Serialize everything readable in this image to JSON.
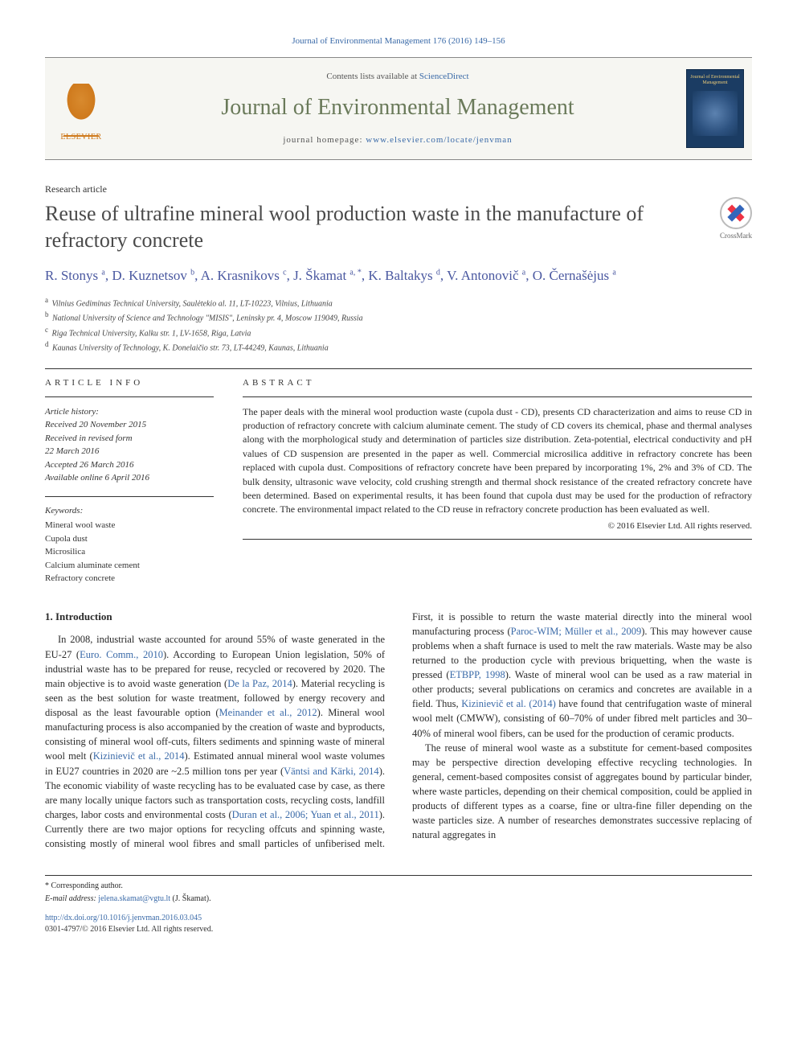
{
  "colors": {
    "link": "#3a6aa8",
    "journal_name": "#6a7a5a",
    "author": "#4a58a0",
    "elsevier_orange": "#cf7a1d",
    "cover_bg": "#1b3c63",
    "cover_accent": "#e8c978",
    "text": "#2a2a2a",
    "rule": "#333333"
  },
  "top_line": "Journal of Environmental Management 176 (2016) 149–156",
  "masthead": {
    "contents_prefix": "Contents lists available at ",
    "contents_link": "ScienceDirect",
    "journal_name": "Journal of Environmental Management",
    "homepage_prefix": "journal homepage: ",
    "homepage_link": "www.elsevier.com/locate/jenvman",
    "logo_word": "ELSEVIER",
    "cover_title": "Journal of Environmental Management"
  },
  "crossmark_label": "CrossMark",
  "article_type": "Research article",
  "title": "Reuse of ultrafine mineral wool production waste in the manufacture of refractory concrete",
  "authors_html": "R. Stonys <sup>a</sup>, D. Kuznetsov <sup>b</sup>, A. Krasnikovs <sup>c</sup>, J. Škamat <sup>a, *</sup>, K. Baltakys <sup>d</sup>, V. Antonovič <sup>a</sup>, O. Černašėjus <sup>a</sup>",
  "affiliations": [
    {
      "sup": "a",
      "text": "Vilnius Gediminas Technical University, Saulėtekio al. 11, LT-10223, Vilnius, Lithuania"
    },
    {
      "sup": "b",
      "text": "National University of Science and Technology \"MISIS\", Leninsky pr. 4, Moscow 119049, Russia"
    },
    {
      "sup": "c",
      "text": "Riga Technical University, Kalku str. 1, LV-1658, Riga, Latvia"
    },
    {
      "sup": "d",
      "text": "Kaunas University of Technology, K. Donelaičio str. 73, LT-44249, Kaunas, Lithuania"
    }
  ],
  "info": {
    "label": "ARTICLE INFO",
    "history_head": "Article history:",
    "history": [
      "Received 20 November 2015",
      "Received in revised form",
      "22 March 2016",
      "Accepted 26 March 2016",
      "Available online 6 April 2016"
    ],
    "keywords_head": "Keywords:",
    "keywords": [
      "Mineral wool waste",
      "Cupola dust",
      "Microsilica",
      "Calcium aluminate cement",
      "Refractory concrete"
    ]
  },
  "abstract": {
    "label": "ABSTRACT",
    "text": "The paper deals with the mineral wool production waste (cupola dust - CD), presents CD characterization and aims to reuse CD in production of refractory concrete with calcium aluminate cement. The study of CD covers its chemical, phase and thermal analyses along with the morphological study and determination of particles size distribution. Zeta-potential, electrical conductivity and pH values of CD suspension are presented in the paper as well. Commercial microsilica additive in refractory concrete has been replaced with cupola dust. Compositions of refractory concrete have been prepared by incorporating 1%, 2% and 3% of CD. The bulk density, ultrasonic wave velocity, cold crushing strength and thermal shock resistance of the created refractory concrete have been determined. Based on experimental results, it has been found that cupola dust may be used for the production of refractory concrete. The environmental impact related to the CD reuse in refractory concrete production has been evaluated as well.",
    "copyright": "© 2016 Elsevier Ltd. All rights reserved."
  },
  "body": {
    "heading": "1. Introduction",
    "p1_pre": "In 2008, industrial waste accounted for around 55% of waste generated in the EU-27 (",
    "p1_ref1": "Euro. Comm., 2010",
    "p1_mid1": "). According to European Union legislation, 50% of industrial waste has to be prepared for reuse, recycled or recovered by 2020. The main objective is to avoid waste generation (",
    "p1_ref2": "De la Paz, 2014",
    "p1_mid2": "). Material recycling is seen as the best solution for waste treatment, followed by energy recovery and disposal as the least favourable option (",
    "p1_ref3": "Meinander et al., 2012",
    "p1_mid3": "). Mineral wool manufacturing process is also accompanied by the creation of waste and byproducts, consisting of mineral wool off-cuts, filters sediments and spinning waste of mineral wool melt (",
    "p1_ref4": "Kizinievič et al., 2014",
    "p1_mid4": "). Estimated annual mineral wool waste volumes in EU27 countries in 2020 are ~2.5 million tons per year (",
    "p1_ref5": "Väntsi and Kärki, 2014",
    "p1_mid5": "). The economic viability of waste recycling has to be evaluated case by case, as there are many locally unique factors such as transportation costs, recycling costs, landfill charges, labor costs and environmental costs (",
    "p1_ref6": "Duran et al., 2006; Yuan et al.,",
    "p1_ref6b": "2011",
    "p1_mid6": "). Currently there are two major options for recycling offcuts and spinning waste, consisting mostly of mineral wool fibres and small particles of unfiberised melt. First, it is possible to return the waste material directly into the mineral wool manufacturing process (",
    "p1_ref7": "Paroc-WIM; Müller et al., 2009",
    "p1_mid7": "). This may however cause problems when a shaft furnace is used to melt the raw materials. Waste may be also returned to the production cycle with previous briquetting, when the waste is pressed (",
    "p1_ref8": "ETBPP, 1998",
    "p1_mid8": "). Waste of mineral wool can be used as a raw material in other products; several publications on ceramics and concretes are available in a field. Thus, ",
    "p1_ref9": "Kizinievič et al. (2014)",
    "p1_mid9": " have found that centrifugation waste of mineral wool melt (CMWW), consisting of 60–70% of under fibred melt particles and 30–40% of mineral wool fibers, can be used for the production of ceramic products.",
    "p2": "The reuse of mineral wool waste as a substitute for cement-based composites may be perspective direction developing effective recycling technologies. In general, cement-based composites consist of aggregates bound by particular binder, where waste particles, depending on their chemical composition, could be applied in products of different types as a coarse, fine or ultra-fine filler depending on the waste particles size. A number of researches demonstrates successive replacing of natural aggregates in"
  },
  "footer": {
    "corr": "* Corresponding author.",
    "email_label": "E-mail address: ",
    "email": "jelena.skamat@vgtu.lt",
    "email_who": " (J. Škamat).",
    "doi": "http://dx.doi.org/10.1016/j.jenvman.2016.03.045",
    "issn_copy": "0301-4797/© 2016 Elsevier Ltd. All rights reserved."
  }
}
